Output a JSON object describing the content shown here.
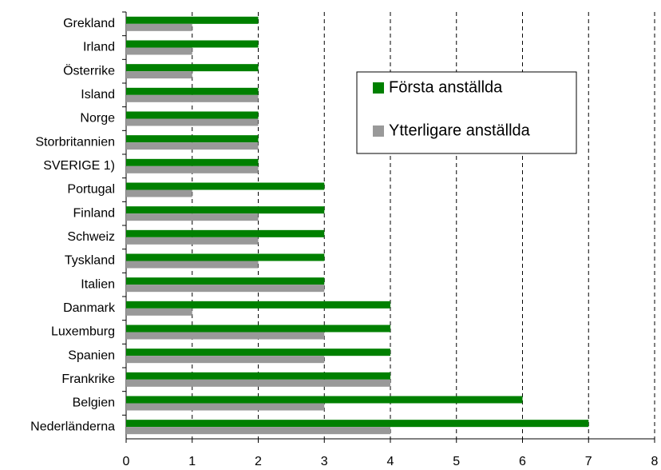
{
  "chart_data": {
    "type": "barh",
    "categories": [
      "Grekland",
      "Irland",
      "Österrike",
      "Island",
      "Norge",
      "Storbritannien",
      "SVERIGE 1)",
      "Portugal",
      "Finland",
      "Schweiz",
      "Tyskland",
      "Italien",
      "Danmark",
      "Luxemburg",
      "Spanien",
      "Frankrike",
      "Belgien",
      "Nederländerna"
    ],
    "series": [
      {
        "name": "Första anställda",
        "color": "#008000",
        "values": [
          2,
          2,
          2,
          2,
          2,
          2,
          2,
          3,
          3,
          3,
          3,
          3,
          4,
          4,
          4,
          4,
          6,
          7
        ]
      },
      {
        "name": "Ytterligare anställda",
        "color": "#999999",
        "values": [
          1,
          1,
          1,
          2,
          2,
          2,
          2,
          1,
          2,
          2,
          2,
          3,
          1,
          3,
          3,
          4,
          3,
          4
        ]
      }
    ],
    "xlim": [
      0,
      8
    ],
    "xticks": [
      0,
      1,
      2,
      3,
      4,
      5,
      6,
      7,
      8
    ],
    "grid": true,
    "legend": "upper right"
  }
}
